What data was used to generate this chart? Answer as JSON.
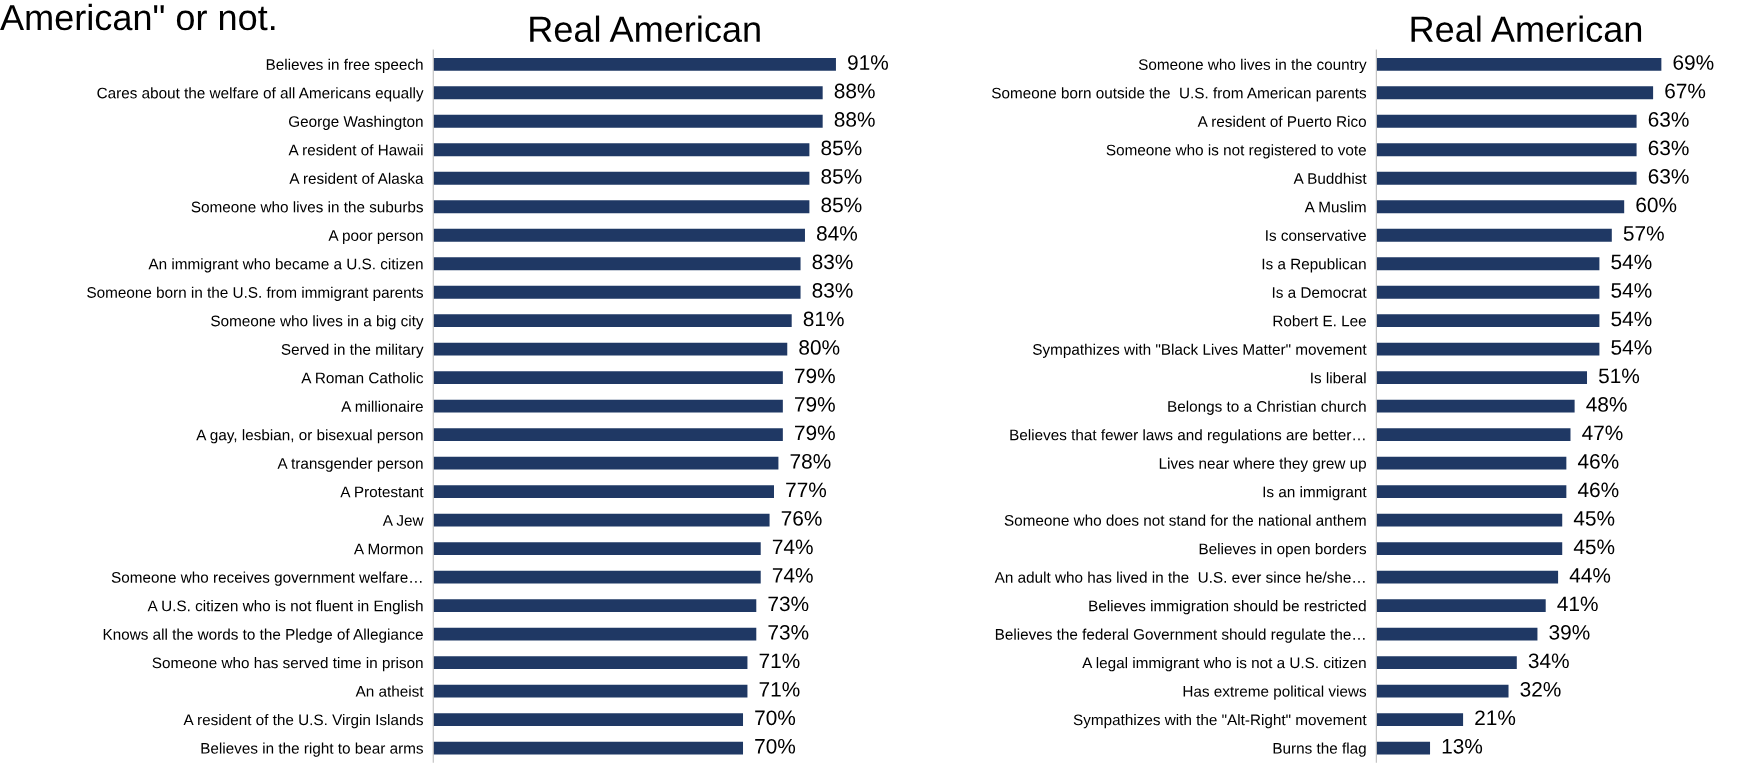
{
  "chart_data": [
    {
      "type": "bar",
      "orientation": "horizontal",
      "title": "Real American",
      "annotations": [
        "American\" or not."
      ],
      "color": "#1f3864",
      "tick_labels": "y",
      "grid": false,
      "legend": false,
      "value_labels": [
        "91%",
        "88%",
        "88%",
        "85%",
        "85%",
        "85%",
        "84%",
        "83%",
        "83%",
        "81%",
        "80%",
        "79%",
        "79%",
        "79%",
        "78%",
        "77%",
        "76%",
        "74%",
        "74%",
        "73%",
        "73%",
        "71%",
        "71%",
        "70%",
        "70%"
      ],
      "categories": [
        "Believes in free speech",
        "Cares about the welfare of all Americans equally",
        "George Washington",
        "A resident of Hawaii",
        "A resident of Alaska",
        "Someone who lives in the suburbs",
        "A poor person",
        "An immigrant who became a U.S. citizen",
        "Someone born in the U.S. from immigrant parents",
        "Someone who lives in a big city",
        "Served in the military",
        "A Roman Catholic",
        "A millionaire",
        "A gay, lesbian, or bisexual person",
        "A transgender person",
        "A Protestant",
        "A Jew",
        "A Mormon",
        "Someone who receives government welfare…",
        "A U.S. citizen who is not fluent in English",
        "Knows all the words to the Pledge of Allegiance",
        "Someone who has served time in prison",
        "An atheist",
        "A resident of the U.S. Virgin Islands",
        "Believes in the right to bear arms"
      ],
      "values": [
        91,
        88,
        88,
        85,
        85,
        85,
        84,
        83,
        83,
        81,
        80,
        79,
        79,
        79,
        78,
        77,
        76,
        74,
        74,
        73,
        73,
        71,
        71,
        70,
        70
      ]
    },
    {
      "type": "bar",
      "orientation": "horizontal",
      "title": "Real American",
      "color": "#1f3864",
      "tick_labels": "y",
      "grid": false,
      "legend": false,
      "value_labels": [
        "69%",
        "67%",
        "63%",
        "63%",
        "63%",
        "60%",
        "57%",
        "54%",
        "54%",
        "54%",
        "54%",
        "51%",
        "48%",
        "47%",
        "46%",
        "46%",
        "45%",
        "45%",
        "44%",
        "41%",
        "39%",
        "34%",
        "32%",
        "21%",
        "13%"
      ],
      "categories": [
        "Someone who lives in the country",
        "Someone born outside the  U.S. from American parents",
        "A resident of Puerto Rico",
        "Someone who is not registered to vote",
        "A Buddhist",
        "A Muslim",
        "Is conservative",
        "Is a Republican",
        "Is a Democrat",
        "Robert E. Lee",
        "Sympathizes with \"Black Lives Matter\" movement",
        "Is liberal",
        "Belongs to a Christian church",
        "Believes that fewer laws and regulations are better…",
        "Lives near where they grew up",
        "Is an immigrant",
        "Someone who does not stand for the national anthem",
        "Believes in open borders",
        "An adult who has lived in the  U.S. ever since he/she…",
        "Believes immigration should be restricted",
        "Believes the federal Government should regulate the…",
        "A legal immigrant who is not a U.S. citizen",
        "Has extreme political views",
        "Sympathizes with the \"Alt-Right\" movement",
        "Burns the flag"
      ],
      "values": [
        69,
        67,
        63,
        63,
        63,
        60,
        57,
        54,
        54,
        54,
        54,
        51,
        48,
        47,
        46,
        46,
        45,
        45,
        44,
        41,
        39,
        34,
        32,
        21,
        13
      ]
    }
  ]
}
